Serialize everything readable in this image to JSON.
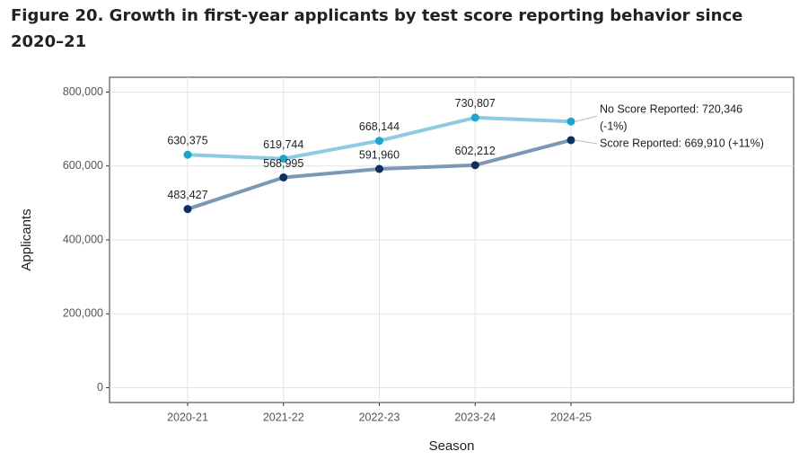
{
  "chart_data": {
    "type": "line",
    "title": "Figure 20. Growth in first-year applicants by test score reporting behavior since 2020–21",
    "xlabel": "Season",
    "ylabel": "Applicants",
    "categories": [
      "2020-21",
      "2021-22",
      "2022-23",
      "2023-24",
      "2024-25"
    ],
    "series": [
      {
        "name": "No Score Reported",
        "color": "#8ccbe3",
        "marker_color": "#1ea5cc",
        "values": [
          630375,
          619744,
          668144,
          730807,
          720346
        ],
        "value_labels": [
          "630,375",
          "619,744",
          "668,144",
          "730,807",
          null
        ]
      },
      {
        "name": "Score Reported",
        "color": "#7d97b6",
        "marker_color": "#0f2f5f",
        "values": [
          483427,
          568995,
          591960,
          602212,
          669910
        ],
        "value_labels": [
          "483,427",
          "568,995",
          "591,960",
          "602,212",
          null
        ]
      }
    ],
    "annotations": [
      {
        "series": 0,
        "lines": [
          "No Score Reported: 720,346",
          "(-1%)"
        ]
      },
      {
        "series": 1,
        "lines": [
          "Score Reported: 669,910 (+11%)"
        ]
      }
    ],
    "ylim": [
      -40000,
      840000
    ],
    "yticks": [
      0,
      {
        "value": 200000,
        "label": "200,000"
      },
      {
        "value": 400000,
        "label": "400,000"
      },
      {
        "value": 600000,
        "label": "600,000"
      },
      {
        "value": 800000,
        "label": "800,000"
      }
    ],
    "grid": true
  }
}
